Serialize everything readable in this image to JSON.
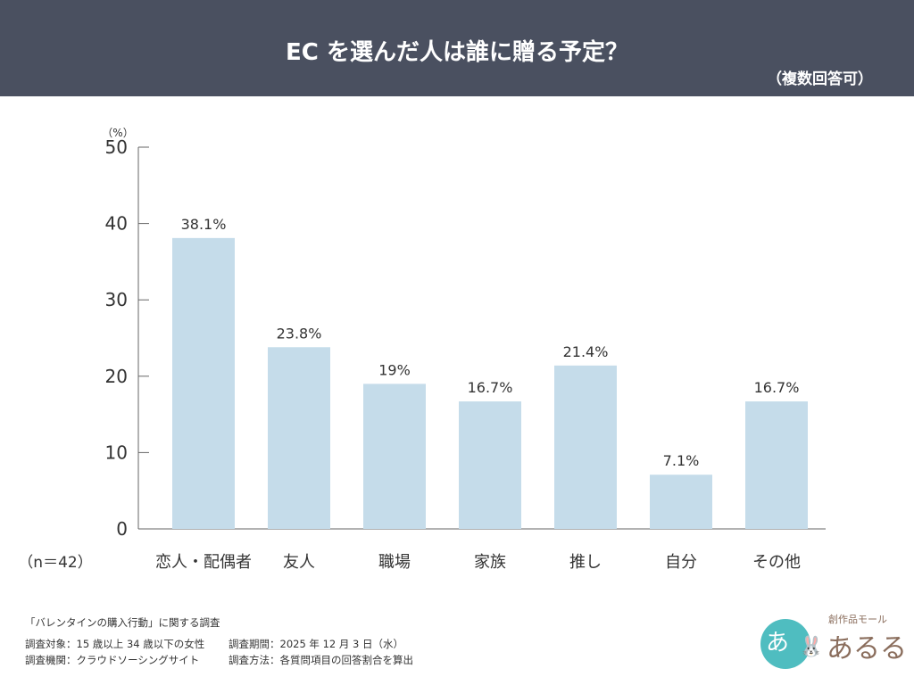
{
  "header": {
    "title": "EC を選んだ人は誰に贈る予定？",
    "subtitle": "（複数回答可）"
  },
  "chart_data": {
    "type": "bar",
    "ylabel": "（%）",
    "ylim": [
      0,
      50
    ],
    "yticks": [
      0,
      10,
      20,
      30,
      40,
      50
    ],
    "categories": [
      "恋人・配偶者",
      "友人",
      "職場",
      "家族",
      "推し",
      "自分",
      "その他"
    ],
    "values": [
      38.1,
      23.8,
      19,
      16.7,
      21.4,
      7.1,
      16.7
    ],
    "data_labels": [
      "38.1%",
      "23.8%",
      "19%",
      "16.7%",
      "21.4%",
      "7.1%",
      "16.7%"
    ],
    "annotation": "（n＝42）",
    "bar_color": "#c5dcea",
    "grid": false
  },
  "footer": {
    "survey_name": "「バレンタインの購入行動」に関する調査",
    "target": "調査対象：15 歳以上 34 歳以下の女性",
    "period": "調査期間：2025 年 12 月 3 日（水）",
    "agency": "調査機関：クラウドソーシングサイト",
    "method": "調査方法：各質問項目の回答割合を算出"
  },
  "logo": {
    "tagline": "創作品モール",
    "name": "あるる",
    "mark": "あ!"
  }
}
